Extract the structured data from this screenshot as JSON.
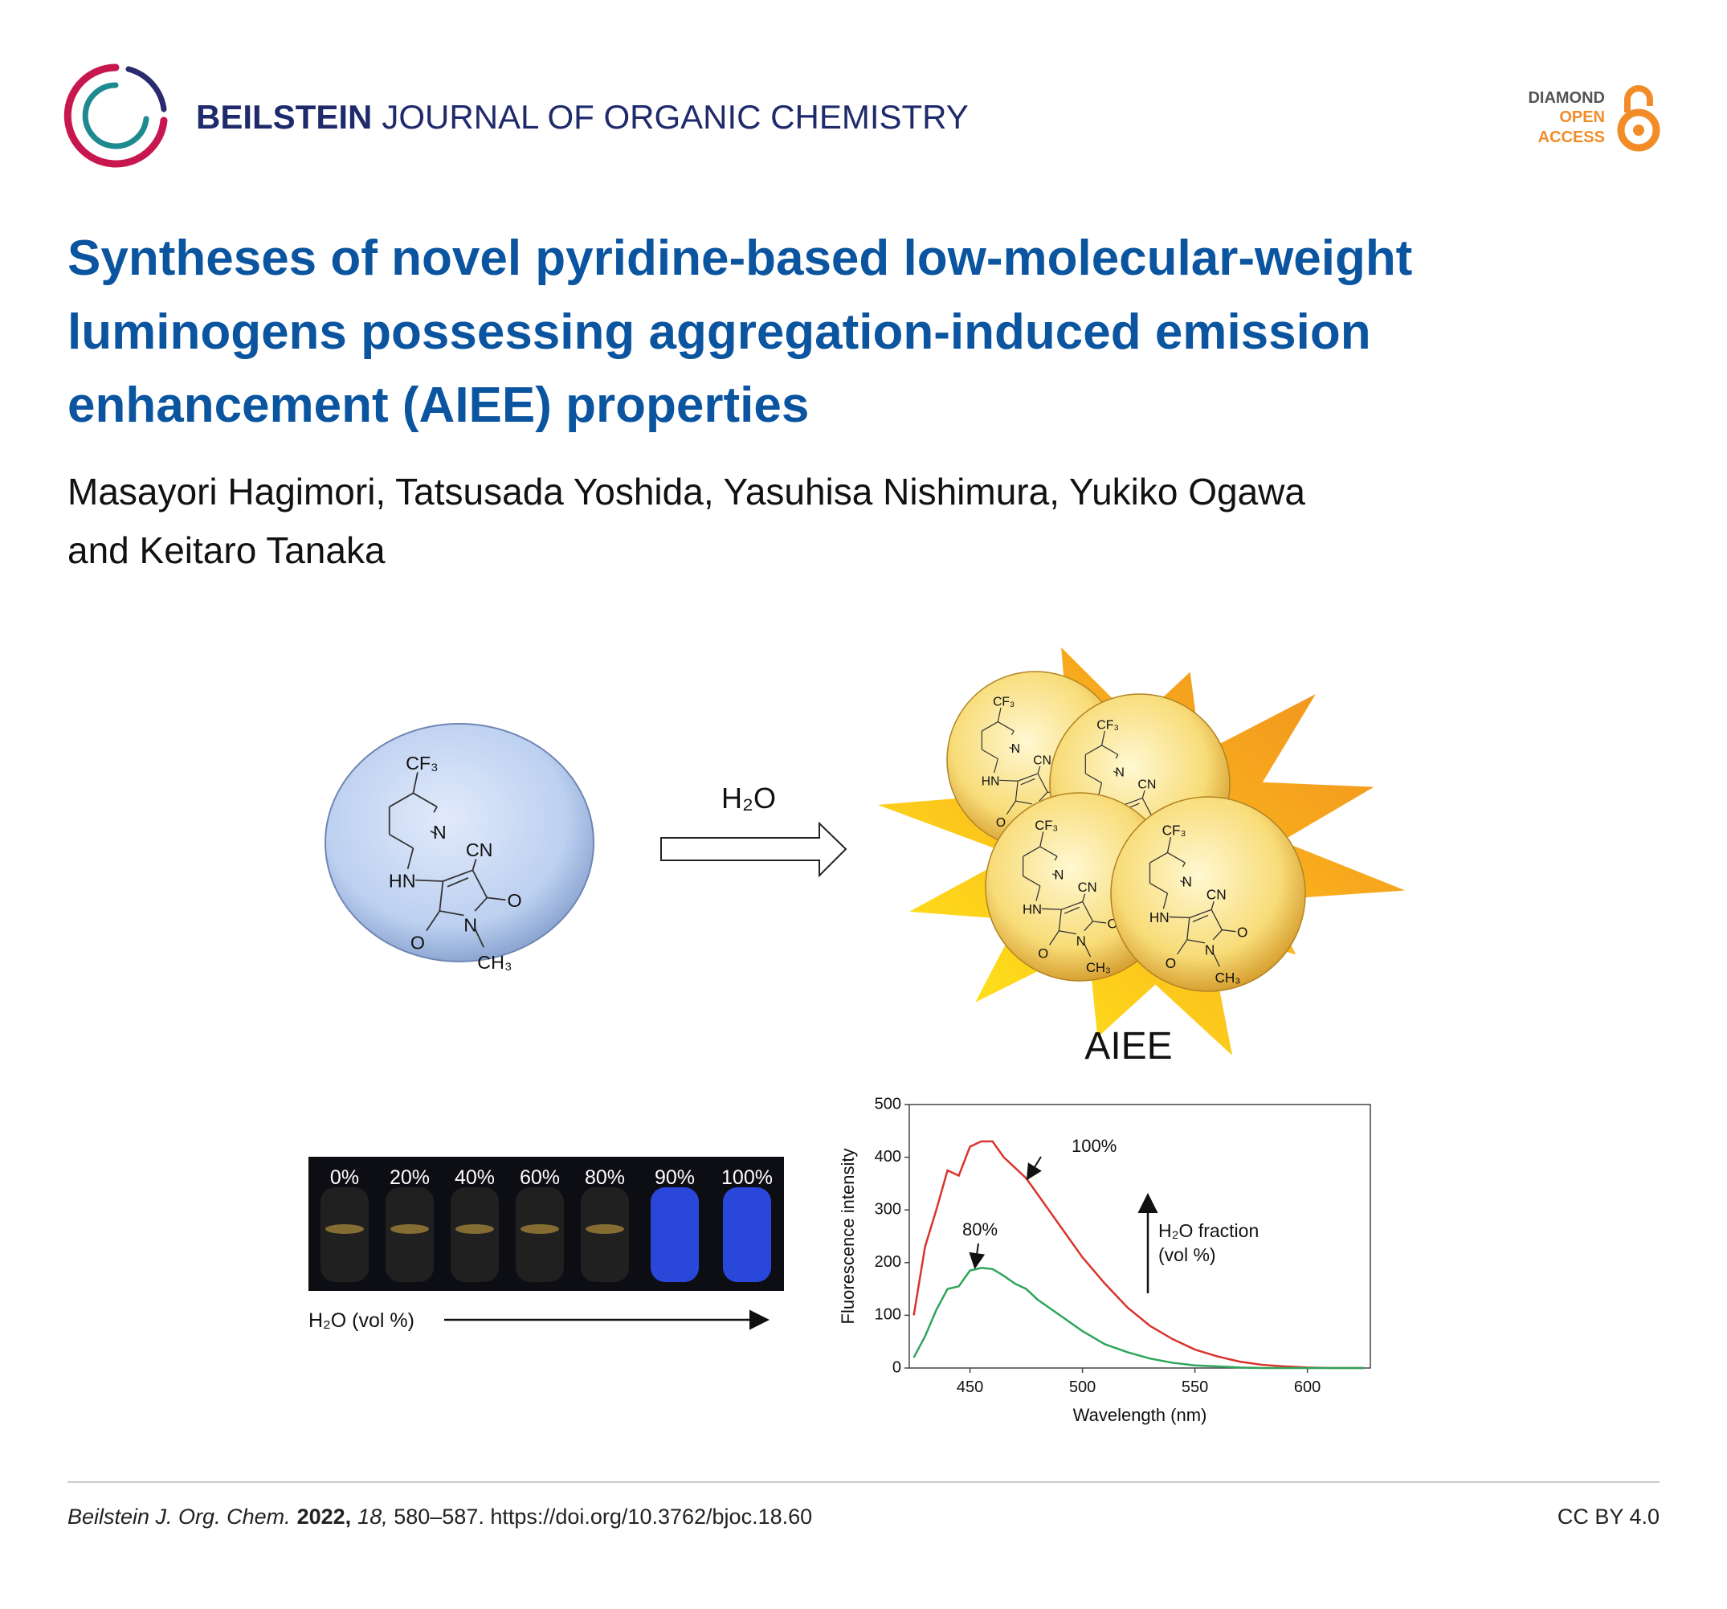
{
  "header": {
    "journal_bold": "BEILSTEIN",
    "journal_rest": "JOURNAL OF ORGANIC CHEMISTRY",
    "badge": [
      "DIAMOND",
      "OPEN",
      "ACCESS"
    ]
  },
  "article": {
    "title_lines": [
      "Syntheses of novel pyridine-based low-molecular-weight",
      "luminogens possessing aggregation-induced emission",
      "enhancement (AIEE) properties"
    ],
    "author_lines": [
      "Masayori Hagimori, Tatsusada Yoshida, Yasuhisa Nishimura, Yukiko Ogawa",
      "and Keitaro Tanaka"
    ]
  },
  "figure": {
    "arrow_label": "H₂O",
    "aiee_label": "AIEE",
    "molecule_labels": [
      "CF₃",
      "N",
      "CN",
      "HN",
      "O",
      "O",
      "N",
      "CH₃"
    ],
    "vial_labels": [
      "0%",
      "20%",
      "40%",
      "60%",
      "80%",
      "90%",
      "100%"
    ],
    "vial_axis_label": "H₂O (vol %)"
  },
  "chart_data": {
    "type": "line",
    "x_label": "Wavelength (nm)",
    "y_label": "Fluorescence intensity",
    "x": [
      425,
      430,
      435,
      440,
      445,
      450,
      455,
      460,
      465,
      470,
      475,
      480,
      490,
      500,
      510,
      520,
      530,
      540,
      550,
      560,
      570,
      580,
      590,
      600,
      610,
      620,
      625
    ],
    "series": [
      {
        "name": "100%",
        "color": "#d9342b",
        "values": [
          100,
          230,
          300,
          375,
          365,
          420,
          430,
          430,
          400,
          380,
          360,
          330,
          270,
          210,
          160,
          115,
          80,
          55,
          35,
          22,
          12,
          6,
          3,
          1,
          0,
          0,
          0
        ]
      },
      {
        "name": "80%",
        "color": "#2ea55a",
        "values": [
          20,
          60,
          110,
          150,
          155,
          185,
          190,
          188,
          175,
          160,
          150,
          130,
          100,
          70,
          45,
          30,
          18,
          10,
          5,
          3,
          1,
          0,
          0,
          0,
          0,
          0,
          0
        ]
      }
    ],
    "xlim": [
      423,
      628
    ],
    "ylim": [
      0,
      500
    ],
    "xticks": [
      450,
      500,
      550,
      600
    ],
    "yticks": [
      0,
      100,
      200,
      300,
      400,
      500
    ],
    "annotations": [
      "H₂O fraction",
      "(vol %)"
    ]
  },
  "footer": {
    "journal": "Beilstein J. Org. Chem.",
    "year": "2022,",
    "volume": "18,",
    "pages": " 580–587. https://doi.org/10.3762/bjoc.18.60",
    "license": "CC BY 4.0"
  }
}
